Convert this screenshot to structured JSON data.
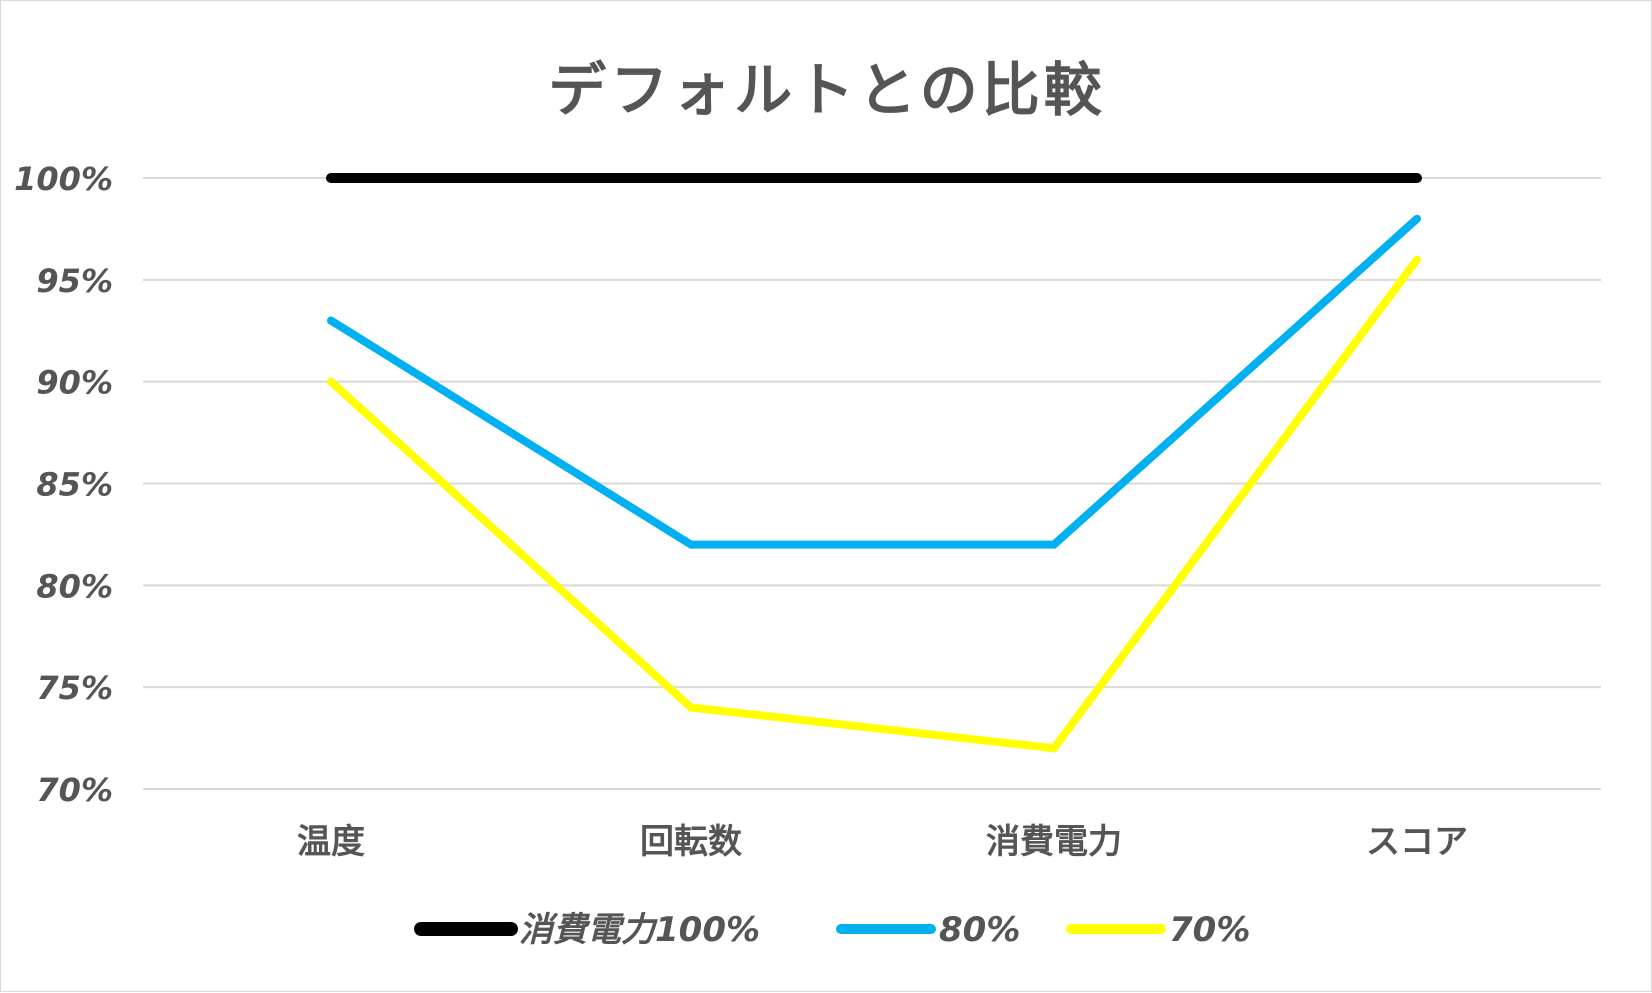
{
  "chart_data": {
    "type": "line",
    "title": "デフォルトとの比較",
    "categories": [
      "温度",
      "回転数",
      "消費電力",
      "スコア"
    ],
    "ylim": [
      70,
      100
    ],
    "yticks": [
      "100%",
      "95%",
      "90%",
      "85%",
      "80%",
      "75%",
      "70%"
    ],
    "ytick_values": [
      100,
      95,
      90,
      85,
      80,
      75,
      70
    ],
    "grid": true,
    "legend_position": "bottom",
    "series": [
      {
        "name": "消費電力100%",
        "color": "#000000",
        "values": [
          100,
          100,
          100,
          100
        ]
      },
      {
        "name": "80%",
        "color": "#00b0f0",
        "values": [
          93,
          82,
          82,
          98
        ]
      },
      {
        "name": "70%",
        "color": "#ffff00",
        "values": [
          90,
          74,
          72,
          96
        ]
      }
    ]
  }
}
